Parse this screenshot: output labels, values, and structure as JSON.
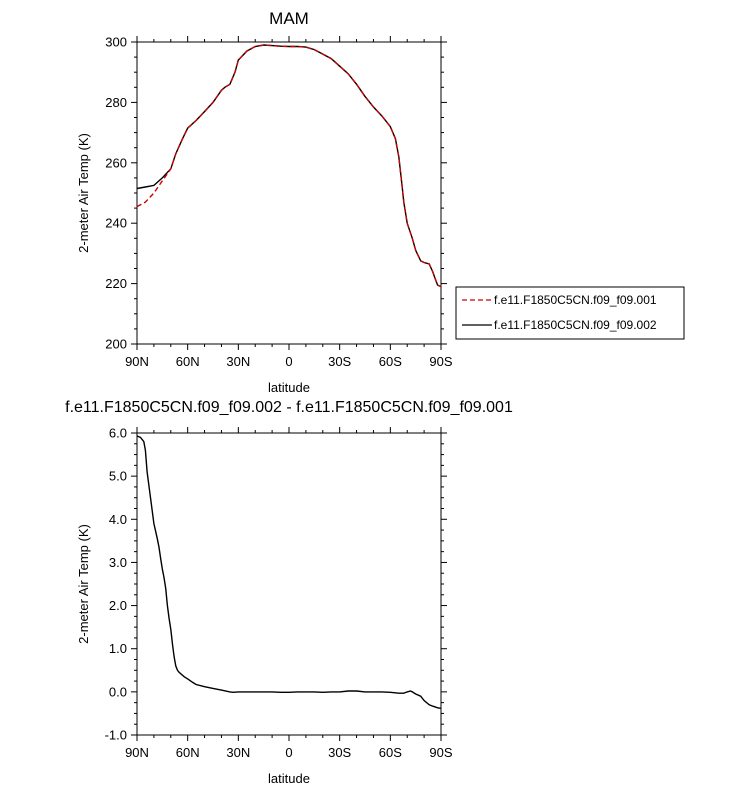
{
  "chart_data": [
    {
      "type": "line",
      "title": "MAM",
      "xlabel": "latitude",
      "ylabel": "2-meter Air Temp (K)",
      "x_ticks": [
        "90N",
        "60N",
        "30N",
        "0",
        "30S",
        "60S",
        "90S"
      ],
      "x_tick_values": [
        90,
        60,
        30,
        0,
        -30,
        -60,
        -90
      ],
      "y_ticks": [
        "200",
        "220",
        "240",
        "260",
        "280",
        "300"
      ],
      "y_tick_values": [
        200,
        220,
        240,
        260,
        280,
        300
      ],
      "xlim": [
        90,
        -90
      ],
      "ylim": [
        200,
        300
      ],
      "legend_position": "right",
      "series": [
        {
          "name": "f.e11.F1850C5CN.f09_f09.001",
          "color": "#cc0000",
          "style": "dashed",
          "x": [
            90,
            85,
            80,
            75,
            70,
            67,
            63,
            60,
            55,
            50,
            45,
            40,
            38,
            35,
            32,
            30,
            25,
            20,
            15,
            10,
            5,
            0,
            -5,
            -10,
            -15,
            -20,
            -25,
            -30,
            -35,
            -40,
            -45,
            -50,
            -55,
            -60,
            -63,
            -65,
            -67,
            -68,
            -70,
            -73,
            -75,
            -78,
            -80,
            -83,
            -85,
            -87,
            -88,
            -90
          ],
          "y": [
            245.5,
            247,
            250,
            254,
            258,
            263,
            268,
            271.5,
            274,
            277,
            280,
            284,
            285,
            286,
            290,
            294,
            297,
            298.5,
            299,
            298.8,
            298.6,
            298.5,
            298.5,
            298.3,
            297.5,
            296,
            294.5,
            292,
            289.5,
            286,
            282,
            278.5,
            275.5,
            272,
            268,
            262,
            252,
            247,
            240,
            235,
            231,
            227.5,
            227,
            226.5,
            224,
            221,
            219.5,
            219
          ]
        },
        {
          "name": "f.e11.F1850C5CN.f09_f09.002",
          "color": "#000000",
          "style": "solid",
          "x": [
            90,
            85,
            80,
            75,
            70,
            67,
            63,
            60,
            55,
            50,
            45,
            40,
            38,
            35,
            32,
            30,
            25,
            20,
            15,
            10,
            5,
            0,
            -5,
            -10,
            -15,
            -20,
            -25,
            -30,
            -35,
            -40,
            -45,
            -50,
            -55,
            -60,
            -63,
            -65,
            -67,
            -68,
            -70,
            -73,
            -75,
            -78,
            -80,
            -83,
            -85,
            -87,
            -88,
            -90
          ],
          "y": [
            251.5,
            252,
            252.5,
            255,
            258,
            263,
            268,
            271.5,
            274,
            277,
            280,
            284,
            285,
            286,
            290,
            294,
            297,
            298.5,
            299,
            298.8,
            298.6,
            298.5,
            298.5,
            298.3,
            297.5,
            296,
            294.5,
            292,
            289.5,
            286,
            282,
            278.5,
            275.5,
            272,
            268,
            262,
            252,
            247,
            240,
            235,
            231,
            227.5,
            227,
            226.5,
            224,
            221,
            219.5,
            219
          ]
        }
      ]
    },
    {
      "type": "line",
      "title": "f.e11.F1850C5CN.f09_f09.002 - f.e11.F1850C5CN.f09_f09.001",
      "xlabel": "latitude",
      "ylabel": "2-meter Air Temp (K)",
      "x_ticks": [
        "90N",
        "60N",
        "30N",
        "0",
        "30S",
        "60S",
        "90S"
      ],
      "x_tick_values": [
        90,
        60,
        30,
        0,
        -30,
        -60,
        -90
      ],
      "y_ticks": [
        "-1.0",
        "0.0",
        "1.0",
        "2.0",
        "3.0",
        "4.0",
        "5.0",
        "6.0"
      ],
      "y_tick_values": [
        -1,
        0,
        1,
        2,
        3,
        4,
        5,
        6
      ],
      "xlim": [
        90,
        -90
      ],
      "ylim": [
        -1,
        6
      ],
      "series": [
        {
          "color": "#000000",
          "style": "solid",
          "x": [
            90,
            88,
            86,
            85,
            84,
            82,
            80,
            78,
            77,
            76,
            75,
            74,
            73,
            72,
            71,
            70,
            69,
            68,
            67,
            66,
            65,
            62,
            60,
            57,
            55,
            50,
            45,
            40,
            35,
            33,
            30,
            25,
            20,
            15,
            10,
            5,
            0,
            -5,
            -10,
            -15,
            -20,
            -25,
            -30,
            -35,
            -40,
            -45,
            -50,
            -55,
            -60,
            -65,
            -68,
            -70,
            -72,
            -73,
            -75,
            -78,
            -80,
            -83,
            -85,
            -88,
            -90
          ],
          "y": [
            5.93,
            5.9,
            5.8,
            5.6,
            5.1,
            4.5,
            3.9,
            3.55,
            3.35,
            3.1,
            2.85,
            2.65,
            2.4,
            2.0,
            1.7,
            1.45,
            1.1,
            0.8,
            0.6,
            0.5,
            0.45,
            0.35,
            0.3,
            0.22,
            0.17,
            0.12,
            0.08,
            0.04,
            0.0,
            -0.01,
            0.0,
            0.0,
            0.0,
            0.0,
            0.0,
            -0.01,
            -0.01,
            0.0,
            0.0,
            0.0,
            -0.01,
            0.0,
            0.0,
            0.02,
            0.02,
            0.0,
            0.0,
            0.0,
            -0.01,
            -0.03,
            -0.03,
            0.0,
            0.02,
            0.0,
            -0.05,
            -0.1,
            -0.2,
            -0.3,
            -0.33,
            -0.37,
            -0.38
          ]
        }
      ]
    }
  ]
}
